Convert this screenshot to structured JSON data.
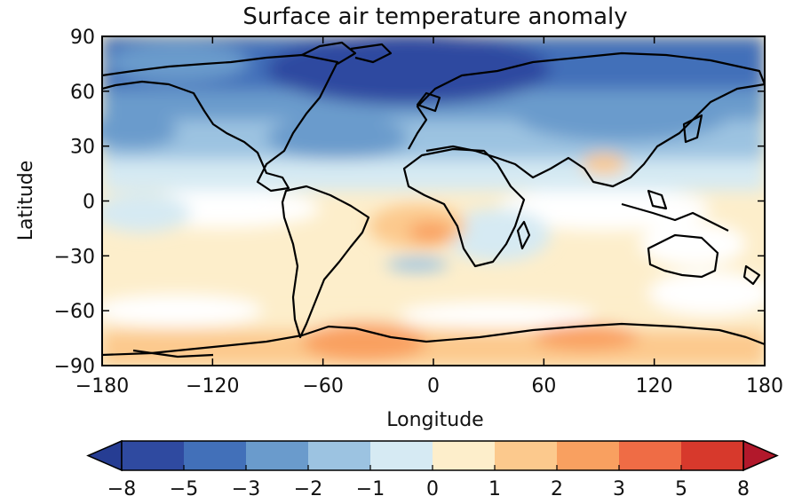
{
  "map": {
    "title": "Surface air temperature anomaly",
    "xlabel": "Longitude",
    "ylabel": "Latitude",
    "x_ticks": [
      "−180",
      "−120",
      "−60",
      "0",
      "60",
      "120",
      "180"
    ],
    "y_ticks": [
      "90",
      "60",
      "30",
      "0",
      "−30",
      "−60",
      "−90"
    ],
    "x_range": [
      -180,
      180
    ],
    "y_range": [
      -90,
      90
    ],
    "projection": "plate carree",
    "field": "contour-filled anomaly with black coastlines"
  },
  "colorbar": {
    "orientation": "horizontal",
    "extend": "both",
    "levels": [
      "−8",
      "−5",
      "−3",
      "−2",
      "−1",
      "0",
      "1",
      "2",
      "3",
      "5",
      "8"
    ],
    "colors": [
      "#2f4aa0",
      "#4270b9",
      "#6a9bcc",
      "#9cc3e1",
      "#d6eaf3",
      "#fdeecb",
      "#fcc98d",
      "#f9a060",
      "#ef6c45",
      "#d7392c"
    ],
    "extend_low_color": "#263d93",
    "extend_high_color": "#b2182b"
  }
}
